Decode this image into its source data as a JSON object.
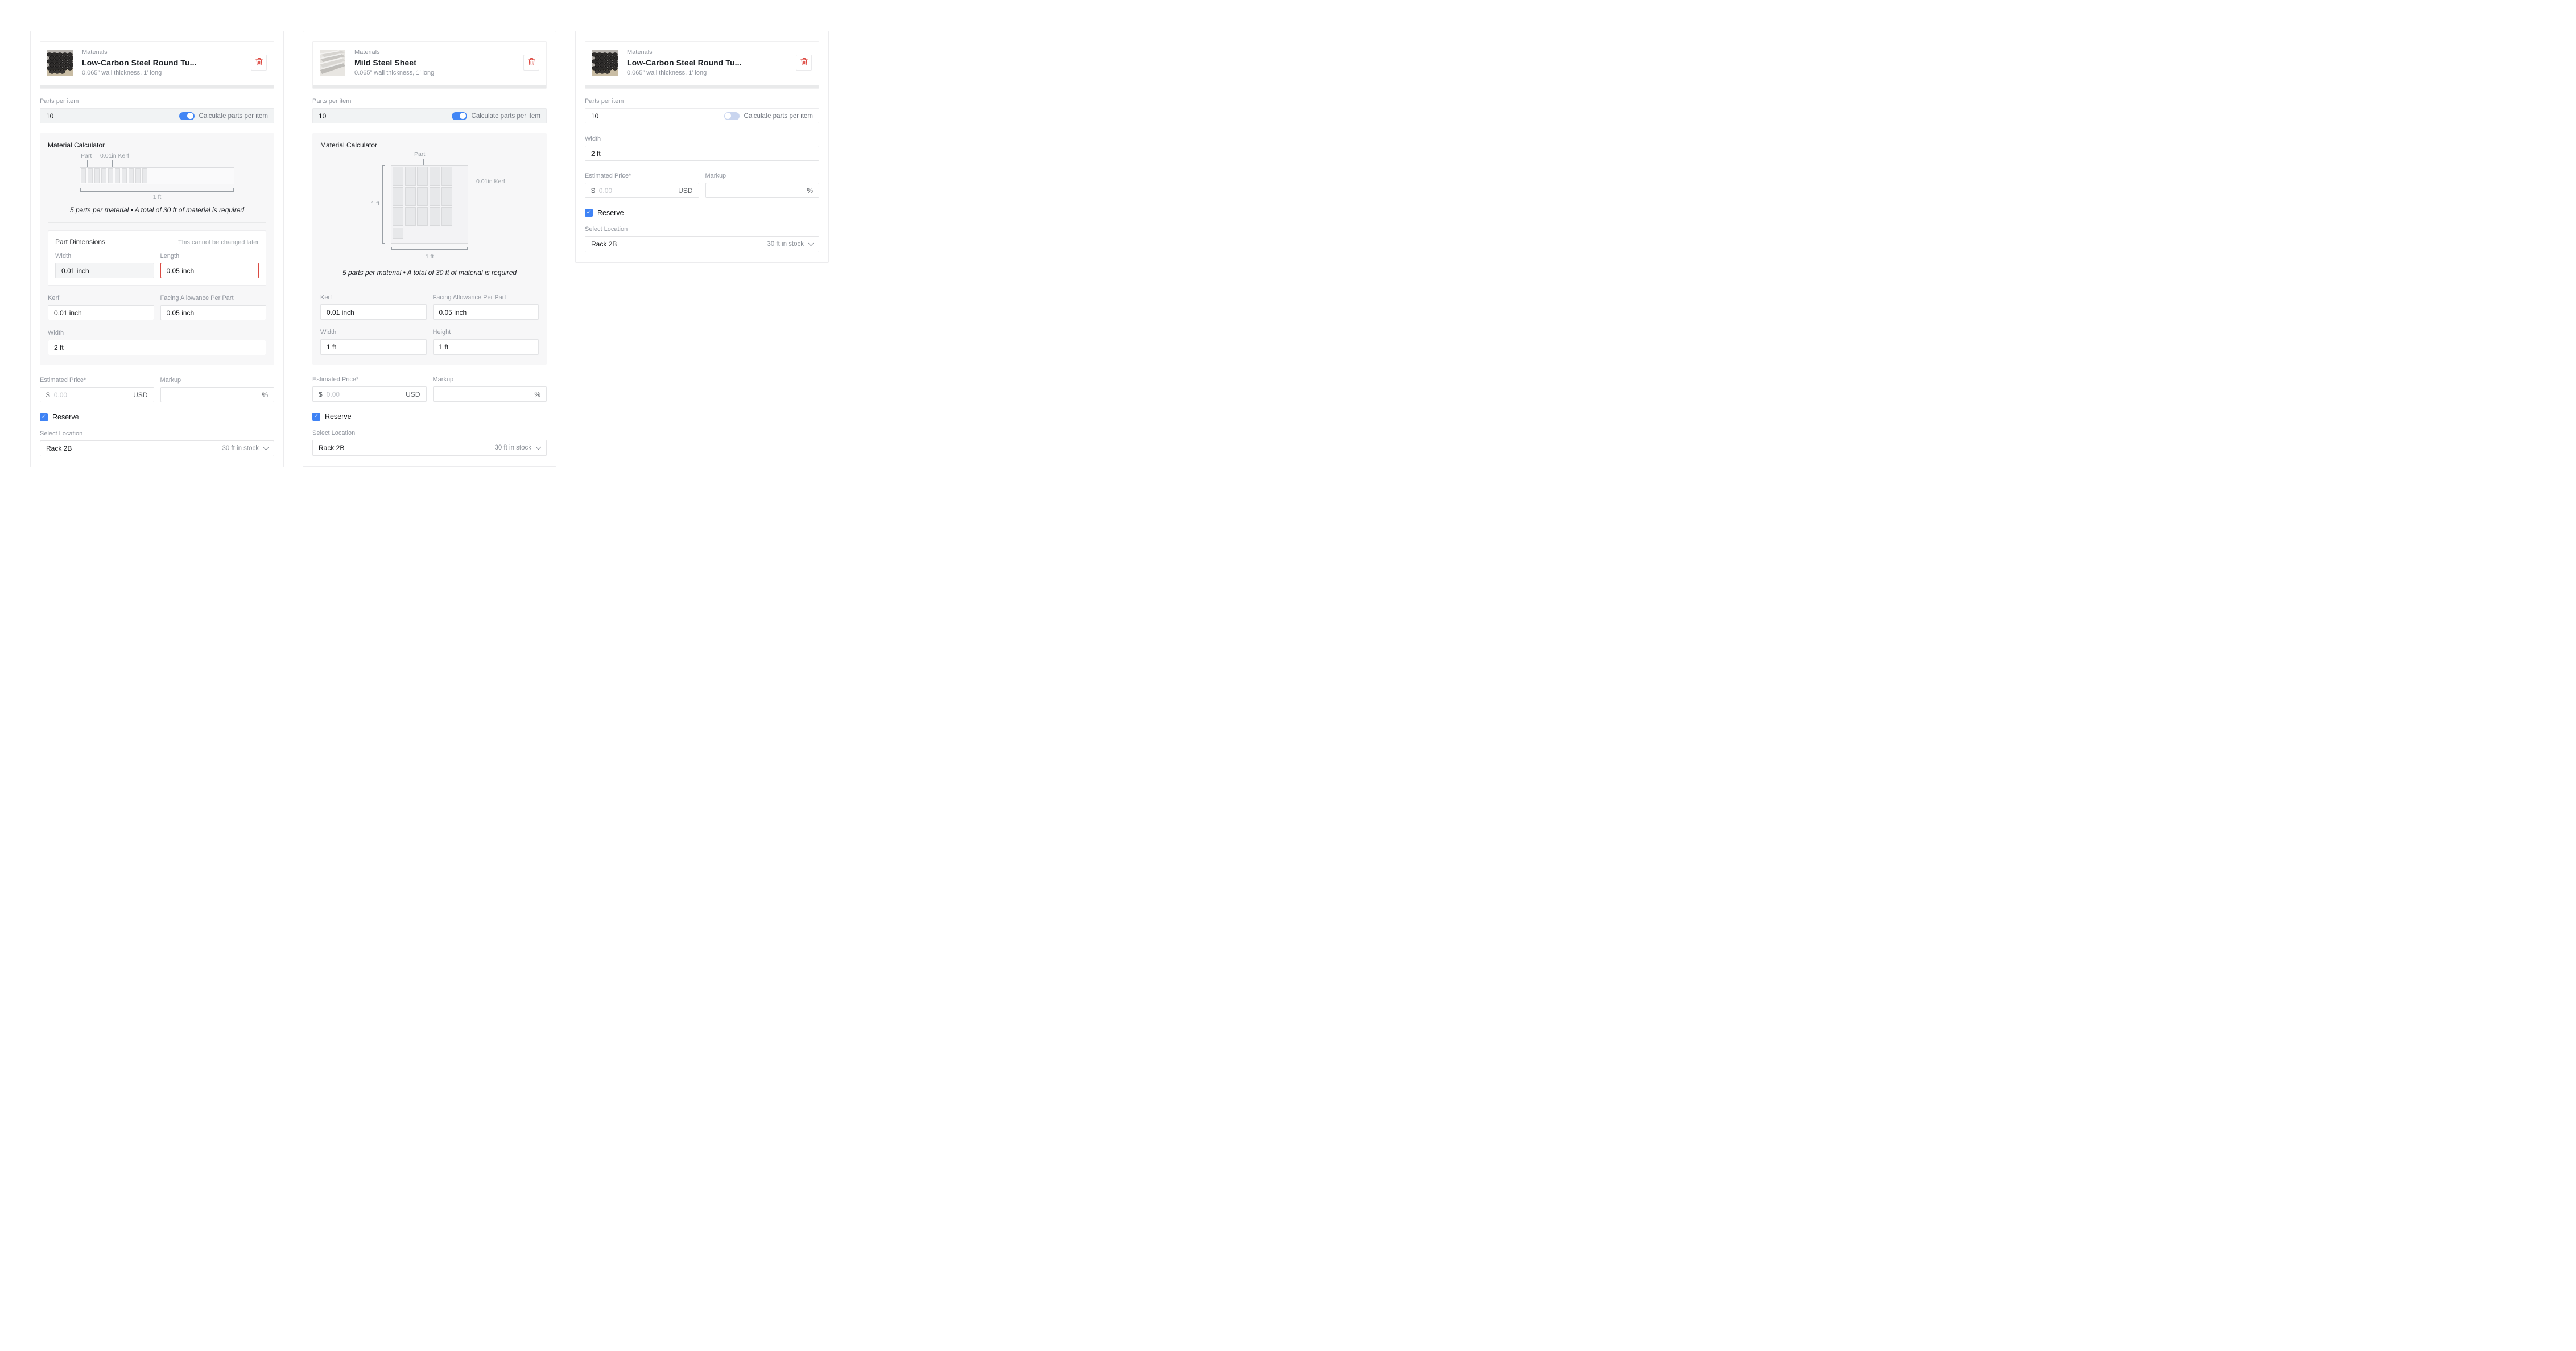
{
  "colors": {
    "accent_blue": "#4286f5",
    "danger_red": "#dd4840",
    "toggle_off_track": "#c9d5ef",
    "error_border": "#da4a42"
  },
  "cards": [
    {
      "header": {
        "category": "Materials",
        "title": "Low-Carbon Steel Round Tu...",
        "subtitle": "0.065” wall thickness, 1’ long"
      },
      "parts": {
        "label": "Parts per item",
        "value": "10",
        "toggle_on": true,
        "toggle_label": "Calculate parts per item"
      },
      "calculator": {
        "title": "Material Calculator",
        "caption": "5 parts per material • A total of 30 ft of material is required",
        "diagram": {
          "type": "bar",
          "part_label": "Part",
          "kerf_label": "0.01in Kerf",
          "length_label": "1 ft",
          "segments": 10
        }
      },
      "part_dimensions": {
        "title": "Part Dimensions",
        "note": "This cannot be changed later",
        "width": {
          "label": "Width",
          "value": "0.01 inch",
          "disabled": true
        },
        "length": {
          "label": "Length",
          "value": "0.05 inch",
          "error": true
        }
      },
      "kerf": {
        "label": "Kerf",
        "value": "0.01 inch"
      },
      "facing": {
        "label": "Facing Allowance Per Part",
        "value": "0.05 inch"
      },
      "width": {
        "label": "Width",
        "value": "2 ft"
      },
      "price": {
        "label": "Estimated Price*",
        "symbol": "$",
        "placeholder": "0.00",
        "currency": "USD"
      },
      "markup": {
        "label": "Markup",
        "suffix": "%"
      },
      "reserve": {
        "label": "Reserve",
        "checked": true
      },
      "location": {
        "label": "Select Location",
        "value": "Rack 2B",
        "stock": "30 ft in stock"
      }
    },
    {
      "header": {
        "category": "Materials",
        "title": "Mild Steel Sheet",
        "subtitle": "0.065” wall thickness, 1’ long"
      },
      "parts": {
        "label": "Parts per item",
        "value": "10",
        "toggle_on": true,
        "toggle_label": "Calculate parts per item"
      },
      "calculator": {
        "title": "Material Calculator",
        "caption": "5 parts per material • A total of 30 ft of material is required",
        "diagram": {
          "type": "sheet",
          "part_label": "Part",
          "kerf_label": "0.01in Kerf",
          "height_label": "1 ft",
          "width_label": "1 ft",
          "columns": 5,
          "rows": 3,
          "cells": 15
        }
      },
      "kerf": {
        "label": "Kerf",
        "value": "0.01 inch"
      },
      "facing": {
        "label": "Facing Allowance Per Part",
        "value": "0.05 inch"
      },
      "width": {
        "label": "Width",
        "value": "1 ft"
      },
      "height": {
        "label": "Height",
        "value": "1 ft"
      },
      "price": {
        "label": "Estimated Price*",
        "symbol": "$",
        "placeholder": "0.00",
        "currency": "USD"
      },
      "markup": {
        "label": "Markup",
        "suffix": "%"
      },
      "reserve": {
        "label": "Reserve",
        "checked": true
      },
      "location": {
        "label": "Select Location",
        "value": "Rack 2B",
        "stock": "30 ft in stock"
      }
    },
    {
      "header": {
        "category": "Materials",
        "title": "Low-Carbon Steel Round Tu...",
        "subtitle": "0.065” wall thickness, 1’ long"
      },
      "parts": {
        "label": "Parts per item",
        "value": "10",
        "toggle_on": false,
        "toggle_label": "Calculate parts per item"
      },
      "width": {
        "label": "Width",
        "value": "2 ft"
      },
      "price": {
        "label": "Estimated Price*",
        "symbol": "$",
        "placeholder": "0.00",
        "currency": "USD"
      },
      "markup": {
        "label": "Markup",
        "suffix": "%"
      },
      "reserve": {
        "label": "Reserve",
        "checked": true
      },
      "location": {
        "label": "Select Location",
        "value": "Rack 2B",
        "stock": "30 ft in stock"
      }
    }
  ]
}
